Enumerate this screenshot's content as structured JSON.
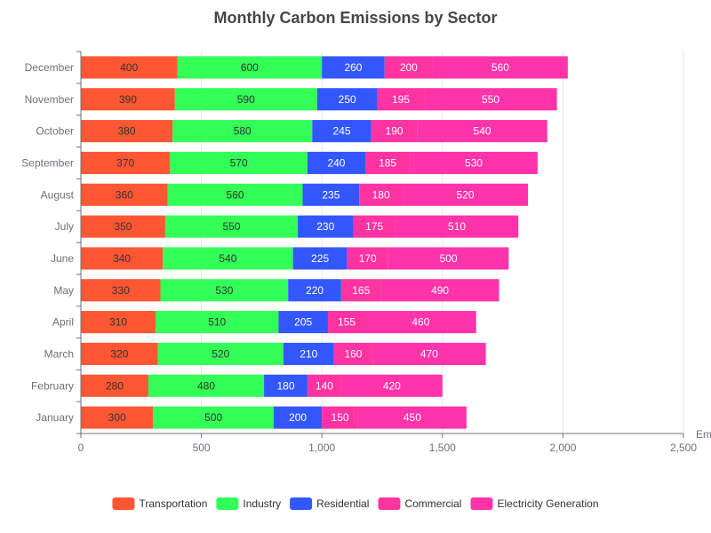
{
  "chart_data": {
    "type": "bar",
    "orientation": "horizontal",
    "stacked": true,
    "title": "Monthly Carbon Emissions by Sector",
    "xlabel": "Em",
    "ylabel": "",
    "xlim": [
      0,
      2500
    ],
    "xticks": [
      "0",
      "500",
      "1,000",
      "1,500",
      "2,000",
      "2,500"
    ],
    "xtick_values": [
      0,
      500,
      1000,
      1500,
      2000,
      2500
    ],
    "grid": true,
    "legend_position": "bottom",
    "categories": [
      "January",
      "February",
      "March",
      "April",
      "May",
      "June",
      "July",
      "August",
      "September",
      "October",
      "November",
      "December"
    ],
    "series": [
      {
        "name": "Transportation",
        "color": "#ff5733",
        "label_color": "#333333",
        "values": [
          300,
          280,
          320,
          310,
          330,
          340,
          350,
          360,
          370,
          380,
          390,
          400
        ]
      },
      {
        "name": "Industry",
        "color": "#33ff57",
        "label_color": "#333333",
        "values": [
          500,
          480,
          520,
          510,
          530,
          540,
          550,
          560,
          570,
          580,
          590,
          600
        ]
      },
      {
        "name": "Residential",
        "color": "#3357ff",
        "label_color": "#ffffff",
        "values": [
          200,
          180,
          210,
          205,
          220,
          225,
          230,
          235,
          240,
          245,
          250,
          260
        ]
      },
      {
        "name": "Commercial",
        "color": "#ff33a1",
        "label_color": "#ffffff",
        "values": [
          150,
          140,
          160,
          155,
          165,
          170,
          175,
          180,
          185,
          190,
          195,
          200
        ]
      },
      {
        "name": "Electricity Generation",
        "color": "#ff33aa",
        "label_color": "#ffffff",
        "values": [
          450,
          420,
          470,
          460,
          490,
          500,
          510,
          520,
          530,
          540,
          550,
          560
        ]
      }
    ]
  }
}
